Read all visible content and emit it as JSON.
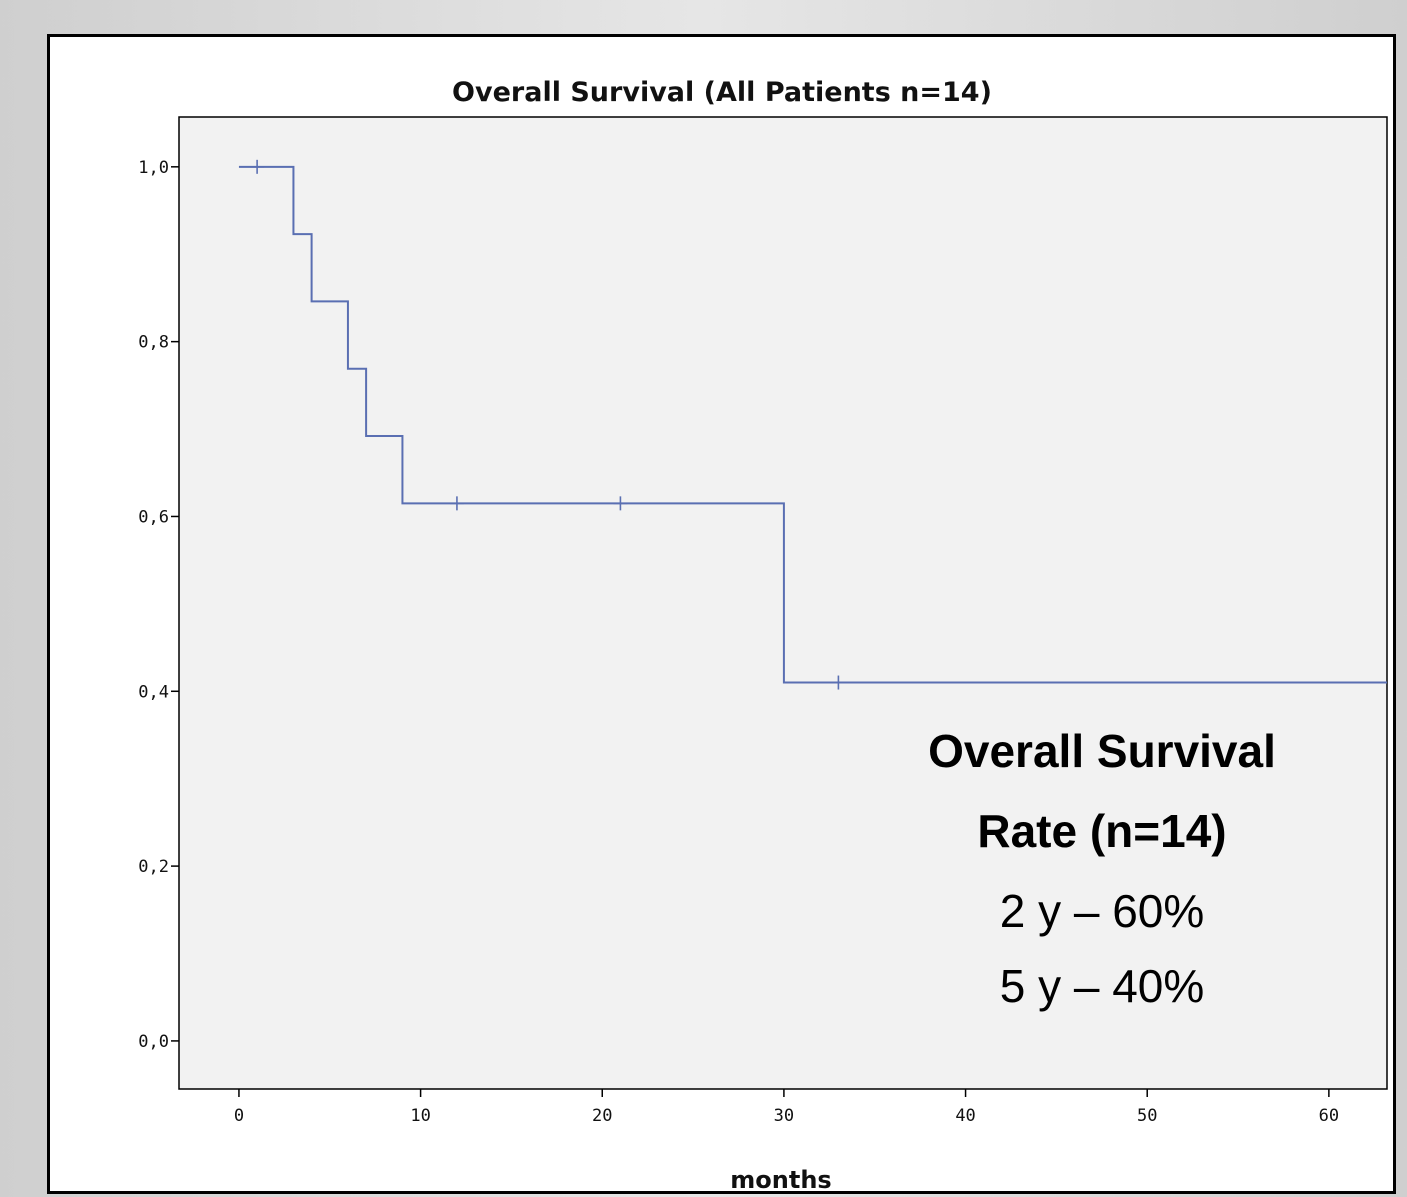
{
  "chart_data": {
    "type": "line",
    "title": "Overall Survival (All Patients n=14)",
    "xlabel": "months",
    "ylabel": "",
    "xlim": [
      -3.3,
      63.2
    ],
    "ylim": [
      -0.055,
      1.057
    ],
    "xticks": [
      0,
      10,
      20,
      30,
      40,
      50,
      60
    ],
    "yticks": [
      0.0,
      0.2,
      0.4,
      0.6,
      0.8,
      1.0
    ],
    "ytick_labels": [
      "0,0",
      "0,2",
      "0,4",
      "0,6",
      "0,8",
      "1,0"
    ],
    "grid": false,
    "legend": null,
    "series_color": "#5a6fb2",
    "series": [
      {
        "steps": [
          {
            "x": 0,
            "y": 1.0
          },
          {
            "x": 3,
            "y": 0.923
          },
          {
            "x": 4,
            "y": 0.846
          },
          {
            "x": 6,
            "y": 0.769
          },
          {
            "x": 7,
            "y": 0.692
          },
          {
            "x": 9,
            "y": 0.615
          },
          {
            "x": 30,
            "y": 0.41
          },
          {
            "x": 63.2,
            "y": 0.41
          }
        ],
        "censored": [
          {
            "x": 1,
            "y": 1.0
          },
          {
            "x": 12,
            "y": 0.615
          },
          {
            "x": 21,
            "y": 0.615
          },
          {
            "x": 33,
            "y": 0.41
          }
        ]
      }
    ],
    "annotations": {
      "line1": "Overall Survival",
      "line2": "Rate (n=14)",
      "line3": "2 y – 60%",
      "line4": "5 y – 40%"
    }
  }
}
